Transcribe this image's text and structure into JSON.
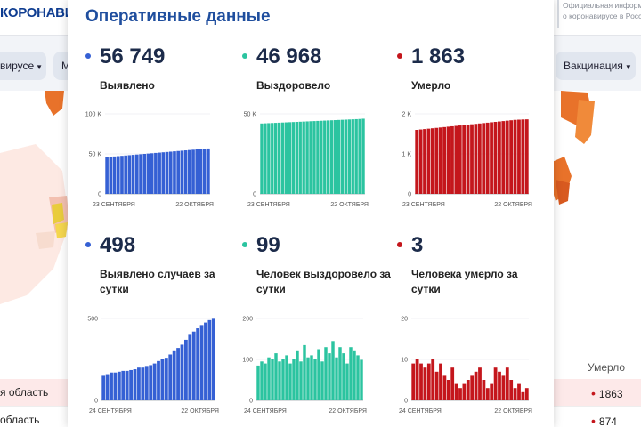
{
  "background": {
    "logo": "КОРОНАВИ",
    "official": [
      "Официальная информ",
      "о коронавирусе в Росс"
    ],
    "nav_pills": [
      "вирусе",
      "М",
      "Вакцинация"
    ],
    "table_header": "Умерло",
    "rows": [
      {
        "name": "я область",
        "value": "1863"
      },
      {
        "name": "область",
        "value": "874"
      }
    ]
  },
  "card": {
    "title": "Оперативные данные",
    "metrics": [
      {
        "value": "56 749",
        "label": "Выявлено",
        "color": "#3560d4"
      },
      {
        "value": "46 968",
        "label": "Выздоровело",
        "color": "#2bc4a0"
      },
      {
        "value": "1 863",
        "label": "Умерло",
        "color": "#c4161c"
      },
      {
        "value": "498",
        "label": "Выявлено случаев за сутки",
        "color": "#3560d4"
      },
      {
        "value": "99",
        "label": "Человек выздоровело за сутки",
        "color": "#2bc4a0"
      },
      {
        "value": "3",
        "label": "Человека умерло за сутки",
        "color": "#c4161c"
      }
    ]
  },
  "chart_data": [
    {
      "type": "bar",
      "series": [
        {
          "values": [
            46000,
            46400,
            46800,
            47200,
            47600,
            48000,
            48400,
            48800,
            49200,
            49600,
            50000,
            50400,
            50800,
            51200,
            51600,
            52000,
            52400,
            52800,
            53200,
            53600,
            54000,
            54400,
            54800,
            55200,
            55600,
            56000,
            56400,
            56749
          ]
        }
      ],
      "yticks": [
        "0",
        "50 K",
        "100 K"
      ],
      "ylim": [
        0,
        100000
      ],
      "xlabels": [
        "23 СЕНТЯБРЯ",
        "22 ОКТЯБРЯ"
      ],
      "color": "#3560d4"
    },
    {
      "type": "bar",
      "series": [
        {
          "values": [
            44000,
            44100,
            44200,
            44300,
            44400,
            44500,
            44600,
            44700,
            44800,
            44900,
            45000,
            45100,
            45200,
            45300,
            45400,
            45500,
            45600,
            45700,
            45800,
            45900,
            46000,
            46100,
            46200,
            46300,
            46400,
            46500,
            46600,
            46700,
            46800,
            46968
          ]
        }
      ],
      "yticks": [
        "0",
        "50 K"
      ],
      "ylim": [
        0,
        50000
      ],
      "xlabels": [
        "23 СЕНТЯБРЯ",
        "22 ОКТЯБРЯ"
      ],
      "color": "#2bc4a0"
    },
    {
      "type": "bar",
      "series": [
        {
          "values": [
            1600,
            1610,
            1620,
            1630,
            1640,
            1650,
            1660,
            1670,
            1680,
            1690,
            1700,
            1710,
            1720,
            1730,
            1740,
            1750,
            1760,
            1770,
            1780,
            1790,
            1800,
            1810,
            1820,
            1830,
            1840,
            1850,
            1855,
            1860,
            1863
          ]
        }
      ],
      "yticks": [
        "0",
        "1 K",
        "2 K"
      ],
      "ylim": [
        0,
        2000
      ],
      "xlabels": [
        "23 СЕНТЯБРЯ",
        "22 ОКТЯБРЯ"
      ],
      "color": "#c4161c"
    },
    {
      "type": "bar",
      "series": [
        {
          "values": [
            150,
            160,
            170,
            170,
            175,
            180,
            180,
            185,
            190,
            200,
            200,
            210,
            215,
            225,
            240,
            250,
            260,
            280,
            300,
            320,
            340,
            370,
            400,
            420,
            440,
            460,
            475,
            490,
            498
          ]
        }
      ],
      "yticks": [
        "0",
        "500"
      ],
      "ylim": [
        0,
        500
      ],
      "xlabels": [
        "24 СЕНТЯБРЯ",
        "22 ОКТЯБРЯ"
      ],
      "color": "#3560d4"
    },
    {
      "type": "bar",
      "series": [
        {
          "values": [
            85,
            95,
            90,
            105,
            100,
            115,
            95,
            100,
            110,
            90,
            100,
            120,
            95,
            135,
            105,
            110,
            100,
            125,
            95,
            130,
            115,
            145,
            105,
            130,
            115,
            90,
            130,
            120,
            110,
            99
          ]
        }
      ],
      "yticks": [
        "0",
        "100",
        "200"
      ],
      "ylim": [
        0,
        200
      ],
      "xlabels": [
        "24 СЕНТЯБРЯ",
        "22 ОКТЯБРЯ"
      ],
      "color": "#2bc4a0"
    },
    {
      "type": "bar",
      "series": [
        {
          "values": [
            9,
            10,
            9,
            8,
            9,
            10,
            7,
            9,
            6,
            5,
            8,
            4,
            3,
            4,
            5,
            6,
            7,
            8,
            5,
            3,
            4,
            8,
            7,
            6,
            8,
            5,
            3,
            4,
            2,
            3
          ]
        }
      ],
      "yticks": [
        "0",
        "10",
        "20"
      ],
      "ylim": [
        0,
        20
      ],
      "xlabels": [
        "24 СЕНТЯБРЯ",
        "22 ОКТЯБРЯ"
      ],
      "color": "#c4161c"
    }
  ]
}
